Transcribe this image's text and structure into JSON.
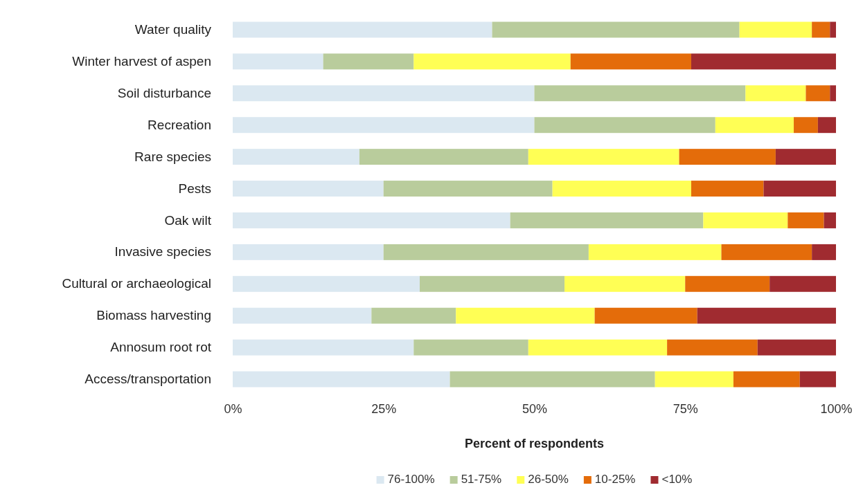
{
  "chart_data": {
    "type": "bar",
    "orientation": "horizontal",
    "stacked": true,
    "xlabel": "Percent of respondents",
    "categories": [
      "Water quality",
      "Winter harvest of aspen",
      "Soil disturbance",
      "Recreation",
      "Rare species",
      "Pests",
      "Oak wilt",
      "Invasive species",
      "Cultural or archaeological",
      "Biomass harvesting",
      "Annosum root rot",
      "Access/transportation"
    ],
    "series": [
      {
        "name": "76-100%",
        "color": "#dbe8f1",
        "values": [
          43,
          15,
          50,
          50,
          21,
          25,
          46,
          25,
          31,
          23,
          30,
          36
        ]
      },
      {
        "name": "51-75%",
        "color": "#b9cc9c",
        "values": [
          41,
          15,
          35,
          30,
          28,
          28,
          32,
          34,
          24,
          14,
          19,
          34
        ]
      },
      {
        "name": "26-50%",
        "color": "#ffff55",
        "values": [
          12,
          26,
          10,
          13,
          25,
          23,
          14,
          22,
          20,
          23,
          23,
          13
        ]
      },
      {
        "name": "10-25%",
        "color": "#e46c0a",
        "values": [
          3,
          20,
          4,
          4,
          16,
          12,
          6,
          15,
          14,
          17,
          15,
          11
        ]
      },
      {
        "name": "<10%",
        "color": "#a02b30",
        "values": [
          1,
          24,
          1,
          3,
          10,
          12,
          2,
          4,
          11,
          23,
          13,
          6
        ]
      }
    ],
    "xlim": [
      0,
      100
    ],
    "xticks": [
      {
        "value": 0,
        "label": "0%"
      },
      {
        "value": 25,
        "label": "25%"
      },
      {
        "value": 50,
        "label": "50%"
      },
      {
        "value": 75,
        "label": "75%"
      },
      {
        "value": 100,
        "label": "100%"
      }
    ],
    "grid": false,
    "legend": "bottom"
  }
}
